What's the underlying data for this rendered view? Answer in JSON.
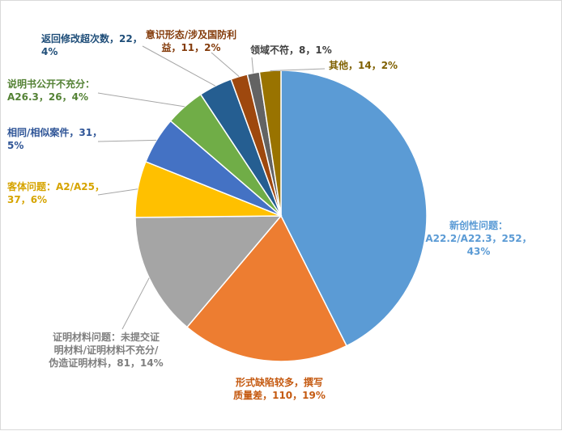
{
  "chart_data": {
    "type": "pie",
    "title": "",
    "slices": [
      {
        "name": "新创性问题：A22.2/A22.3",
        "value": 252,
        "percent": "43%",
        "color": "#5b9bd5",
        "label_lines": [
          "新创性问题：",
          "A22.2/A22.3，252，",
          "43%"
        ]
      },
      {
        "name": "形式缺陷较多，撰写质量差",
        "value": 110,
        "percent": "19%",
        "color": "#ed7d31",
        "label_lines": [
          "形式缺陷较多，撰写",
          "质量差，110，19%"
        ]
      },
      {
        "name": "证明材料问题：未提交证明材料/证明材料不充分/伪造证明材料",
        "value": 81,
        "percent": "14%",
        "color": "#a5a5a5",
        "label_lines": [
          "证明材料问题：未提交证",
          "明材料/证明材料不充分/",
          "伪造证明材料，81，14%"
        ]
      },
      {
        "name": "客体问题：A2/A25",
        "value": 37,
        "percent": "6%",
        "color": "#ffc000",
        "label_lines": [
          "客体问题：A2/A25，",
          "37，6%"
        ]
      },
      {
        "name": "相同/相似案件",
        "value": 31,
        "percent": "5%",
        "color": "#4472c4",
        "label_lines": [
          "相同/相似案件，31，",
          "5%"
        ]
      },
      {
        "name": "说明书公开不充分：A26.3",
        "value": 26,
        "percent": "4%",
        "color": "#70ad47",
        "label_lines": [
          "说明书公开不充分：",
          "A26.3，26，4%"
        ]
      },
      {
        "name": "返回修改超次数",
        "value": 22,
        "percent": "4%",
        "color": "#255e91",
        "label_lines": [
          "返回修改超次数，22，",
          "4%"
        ]
      },
      {
        "name": "意识形态/涉及国防利益",
        "value": 11,
        "percent": "2%",
        "color": "#9e480e",
        "label_lines": [
          "意识形态/涉及国防利",
          "益，11，2%"
        ]
      },
      {
        "name": "领域不符",
        "value": 8,
        "percent": "1%",
        "color": "#636363",
        "label_lines": [
          "领域不符，8，1%"
        ]
      },
      {
        "name": "其他",
        "value": 14,
        "percent": "2%",
        "color": "#997300",
        "label_lines": [
          "其他，14，2%"
        ]
      }
    ],
    "legend": "none",
    "data_labels": "outside with leader lines"
  }
}
